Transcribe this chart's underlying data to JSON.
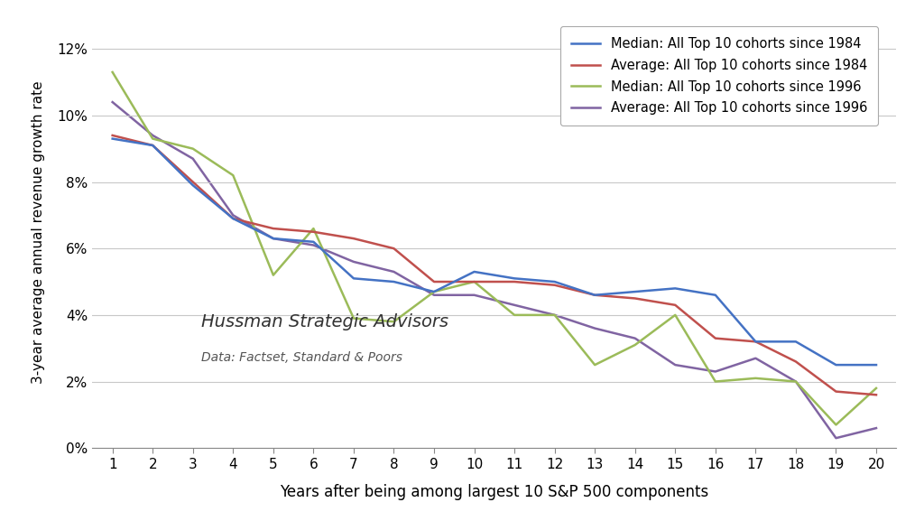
{
  "x": [
    1,
    2,
    3,
    4,
    5,
    6,
    7,
    8,
    9,
    10,
    11,
    12,
    13,
    14,
    15,
    16,
    17,
    18,
    19,
    20
  ],
  "median_1984": [
    0.093,
    0.091,
    0.079,
    0.069,
    0.063,
    0.062,
    0.051,
    0.05,
    0.047,
    0.053,
    0.051,
    0.05,
    0.046,
    0.047,
    0.048,
    0.046,
    0.032,
    0.032,
    0.025,
    0.025
  ],
  "average_1984": [
    0.094,
    0.091,
    0.08,
    0.069,
    0.066,
    0.065,
    0.063,
    0.06,
    0.05,
    0.05,
    0.05,
    0.049,
    0.046,
    0.045,
    0.043,
    0.033,
    0.032,
    0.026,
    0.017,
    0.016
  ],
  "median_1996": [
    0.113,
    0.093,
    0.09,
    0.082,
    0.052,
    0.066,
    0.039,
    0.038,
    0.047,
    0.05,
    0.04,
    0.04,
    0.025,
    0.031,
    0.04,
    0.02,
    0.021,
    0.02,
    0.007,
    0.018
  ],
  "average_1996": [
    0.104,
    0.094,
    0.087,
    0.07,
    0.063,
    0.061,
    0.056,
    0.053,
    0.046,
    0.046,
    0.043,
    0.04,
    0.036,
    0.033,
    0.025,
    0.023,
    0.027,
    0.02,
    0.003,
    0.006
  ],
  "colors": {
    "median_1984": "#4472C4",
    "average_1984": "#C0504D",
    "median_1996": "#9BBB59",
    "average_1996": "#8064A2"
  },
  "legend_labels": {
    "median_1984": "Median: All Top 10 cohorts since 1984",
    "average_1984": "Average: All Top 10 cohorts since 1984",
    "median_1996": "Median: All Top 10 cohorts since 1996",
    "average_1996": "Average: All Top 10 cohorts since 1996"
  },
  "xlabel": "Years after being among largest 10 S&P 500 components",
  "ylabel": "3-year average annual revenue growth rate",
  "watermark_line1": "Hussman Strategic Advisors",
  "watermark_line2": "Data: Factset, Standard & Poors",
  "ylim": [
    0.0,
    0.13
  ],
  "yticks": [
    0.0,
    0.02,
    0.04,
    0.06,
    0.08,
    0.1,
    0.12
  ],
  "xlim": [
    0.5,
    20.5
  ],
  "xticks": [
    1,
    2,
    3,
    4,
    5,
    6,
    7,
    8,
    9,
    10,
    11,
    12,
    13,
    14,
    15,
    16,
    17,
    18,
    19,
    20
  ],
  "line_width": 1.8,
  "background_color": "#FFFFFF",
  "grid_color": "#C8C8C8",
  "watermark_color1": "#333333",
  "watermark_color2": "#555555"
}
